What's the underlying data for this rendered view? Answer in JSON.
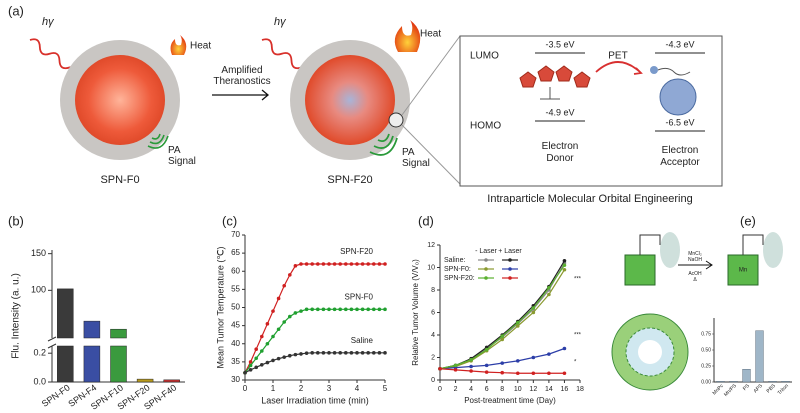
{
  "panel_labels": [
    "(a)",
    "(b)",
    "(c)",
    "(d)",
    "(e)"
  ],
  "panel_a": {
    "left_particle": {
      "photon": "hγ",
      "heat": "Heat",
      "signal": [
        "PA",
        "Signal"
      ],
      "name": "SPN-F0"
    },
    "arrow_label": [
      "Amplified",
      "Theranostics"
    ],
    "right_particle": {
      "photon": "hγ",
      "heat": "Heat",
      "signal": [
        "PA",
        "Signal"
      ],
      "name": "SPN-F20"
    },
    "orbital_box": {
      "lumo": "LUMO",
      "homo": "HOMO",
      "donor_lumo": "-3.5 eV",
      "donor_homo": "-4.9 eV",
      "acceptor_lumo": "-4.3 eV",
      "acceptor_homo": "-6.5 eV",
      "transfer": "PET",
      "donor": [
        "Electron",
        "Donor"
      ],
      "acceptor": [
        "Electron",
        "Acceptor"
      ]
    },
    "caption": "Intraparticle Molecular Orbital Engineering"
  },
  "panel_e": {
    "reagents_above": [
      "MnCl₂",
      "NaOH"
    ],
    "reagents_below": [
      "AcOH",
      "Δ"
    ]
  },
  "chart_data": [
    {
      "type": "bar",
      "ylabel": "Flu. Intensity (a. u.)",
      "categories": [
        "SPN-F0",
        "SPN-F4",
        "SPN-F10",
        "SPN-F20",
        "SPN-F40"
      ],
      "values": [
        102,
        58,
        47,
        0.02,
        0.015
      ],
      "colors": [
        "#3a3a3a",
        "#3a4ea3",
        "#3a9a3e",
        "#b89a1c",
        "#c23030"
      ],
      "ylim_upper": [
        35,
        155
      ],
      "yticks_upper": [
        100,
        150
      ],
      "ylim_lower": [
        0,
        0.25
      ],
      "yticks_lower": [
        {
          "value": 0,
          "label": "0.0"
        },
        {
          "value": 0.2,
          "label": "0.2"
        }
      ]
    },
    {
      "type": "line",
      "xlabel": "Laser Irradiation time (min)",
      "ylabel": "Mean Tumor Temperature (℃)",
      "x": [
        0,
        0.2,
        0.4,
        0.6,
        0.8,
        1,
        1.2,
        1.4,
        1.6,
        1.8,
        2,
        2.2,
        2.4,
        2.6,
        2.8,
        3,
        3.2,
        3.4,
        3.6,
        3.8,
        4,
        4.2,
        4.4,
        4.6,
        4.8,
        5
      ],
      "series": [
        {
          "name": "SPN-F20",
          "color": "#d02020",
          "values": [
            32,
            35,
            38.5,
            42,
            45.5,
            49,
            52.5,
            56,
            59,
            61.5,
            62,
            62,
            62,
            62,
            62,
            62,
            62,
            62,
            62,
            62,
            62,
            62,
            62,
            62,
            62,
            62
          ]
        },
        {
          "name": "SPN-F0",
          "color": "#20a030",
          "values": [
            32,
            34,
            36,
            38,
            40,
            42,
            44,
            46,
            47.5,
            48.5,
            49,
            49.5,
            49.5,
            49.5,
            49.5,
            49.5,
            49.5,
            49.5,
            49.5,
            49.5,
            49.5,
            49.5,
            49.5,
            49.5,
            49.5,
            49.5
          ]
        },
        {
          "name": "Saline",
          "color": "#333333",
          "values": [
            32,
            32.8,
            33.5,
            34.2,
            34.8,
            35.4,
            35.9,
            36.3,
            36.7,
            37,
            37.2,
            37.4,
            37.5,
            37.5,
            37.5,
            37.5,
            37.5,
            37.5,
            37.5,
            37.5,
            37.5,
            37.5,
            37.5,
            37.5,
            37.5,
            37.5
          ]
        }
      ],
      "xlim": [
        0,
        5
      ],
      "xticks": [
        0,
        1,
        2,
        3,
        4,
        5
      ],
      "ylim": [
        30,
        70
      ],
      "yticks": [
        30,
        35,
        40,
        45,
        50,
        55,
        60,
        65,
        70
      ]
    },
    {
      "type": "line",
      "xlabel": "Post-treatment time (Day)",
      "ylabel": "Relative Tumor Volume (V/V₀)",
      "x": [
        0,
        2,
        4,
        6,
        8,
        10,
        12,
        14,
        16
      ],
      "legend_columns": [
        "- Laser",
        "+ Laser"
      ],
      "groups": [
        {
          "name": "Saline:",
          "series": [
            {
              "color": "#888888",
              "values": [
                1,
                1.3,
                1.8,
                2.8,
                3.8,
                5,
                6.3,
                8,
                10.4
              ]
            },
            {
              "color": "#222222",
              "values": [
                1,
                1.3,
                1.9,
                2.9,
                4,
                5.2,
                6.6,
                8.3,
                10.6
              ]
            }
          ]
        },
        {
          "name": "SPN-F0:",
          "series": [
            {
              "color": "#8a9a30",
              "values": [
                1,
                1.2,
                1.7,
                2.6,
                3.6,
                4.8,
                6,
                7.6,
                9.8
              ]
            },
            {
              "color": "#2c3ea8",
              "values": [
                1,
                1.1,
                1.2,
                1.3,
                1.5,
                1.7,
                2,
                2.3,
                2.8
              ]
            }
          ]
        },
        {
          "name": "SPN-F20:",
          "series": [
            {
              "color": "#5ab030",
              "values": [
                1,
                1.3,
                1.8,
                2.7,
                3.9,
                5.1,
                6.4,
                8.2,
                10.2
              ]
            },
            {
              "color": "#d02020",
              "values": [
                1,
                0.9,
                0.8,
                0.7,
                0.65,
                0.6,
                0.6,
                0.6,
                0.6
              ]
            }
          ]
        }
      ],
      "annotations": [
        "***",
        "***",
        "*"
      ],
      "xlim": [
        0,
        18
      ],
      "xticks": [
        0,
        2,
        4,
        6,
        8,
        10,
        12,
        14,
        16,
        18
      ],
      "ylim": [
        0,
        12
      ],
      "yticks": [
        0,
        2,
        4,
        6,
        8,
        10,
        12
      ]
    },
    {
      "type": "bar",
      "categories": [
        "MnPc",
        "Mn/PS",
        "PS",
        "APS",
        "PBS",
        "Triton"
      ],
      "values": [
        0.01,
        0.01,
        0.2,
        0.8,
        0.01,
        0.01
      ],
      "colors": [
        "#9fb6c8",
        "#9fb6c8",
        "#9fb6c8",
        "#9fb6c8",
        "#9fb6c8",
        "#9fb6c8"
      ],
      "ylim": [
        0,
        1
      ],
      "yticks": [
        {
          "value": 0,
          "label": "0.00"
        },
        {
          "value": 0.25,
          "label": "0.25"
        },
        {
          "value": 0.5,
          "label": "0.50"
        },
        {
          "value": 0.75,
          "label": "0.75"
        }
      ]
    }
  ]
}
